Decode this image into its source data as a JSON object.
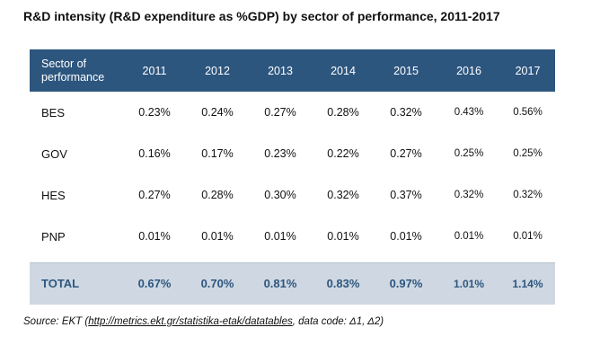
{
  "title": "R&D intensity (R&D expenditure as %GDP) by sector of performance, 2011-2017",
  "table": {
    "header_line1": "Sector of",
    "header_line2": "performance",
    "years": [
      "2011",
      "2012",
      "2013",
      "2014",
      "2015",
      "2016",
      "2017"
    ],
    "rows": [
      {
        "sector": "BES",
        "values": [
          "0.23%",
          "0.24%",
          "0.27%",
          "0.28%",
          "0.32%",
          "0.43%",
          "0.56%"
        ]
      },
      {
        "sector": "GOV",
        "values": [
          "0.16%",
          "0.17%",
          "0.23%",
          "0.22%",
          "0.27%",
          "0.25%",
          "0.25%"
        ]
      },
      {
        "sector": "HES",
        "values": [
          "0.27%",
          "0.28%",
          "0.30%",
          "0.32%",
          "0.37%",
          "0.32%",
          "0.32%"
        ]
      },
      {
        "sector": "PNP",
        "values": [
          "0.01%",
          "0.01%",
          "0.01%",
          "0.01%",
          "0.01%",
          "0.01%",
          "0.01%"
        ]
      }
    ],
    "total": {
      "sector": "TOTAL",
      "values": [
        "0.67%",
        "0.70%",
        "0.81%",
        "0.83%",
        "0.97%",
        "1.01%",
        "1.14%"
      ]
    }
  },
  "source": {
    "prefix": "Source: EKT (",
    "link": "http://metrics.ekt.gr/statistika-etak/datatables",
    "suffix": ", data code: Δ1, Δ2)"
  },
  "colors": {
    "header_bg": "#2d567f",
    "total_bg": "#cfd8e2",
    "total_text": "#2d567f"
  }
}
